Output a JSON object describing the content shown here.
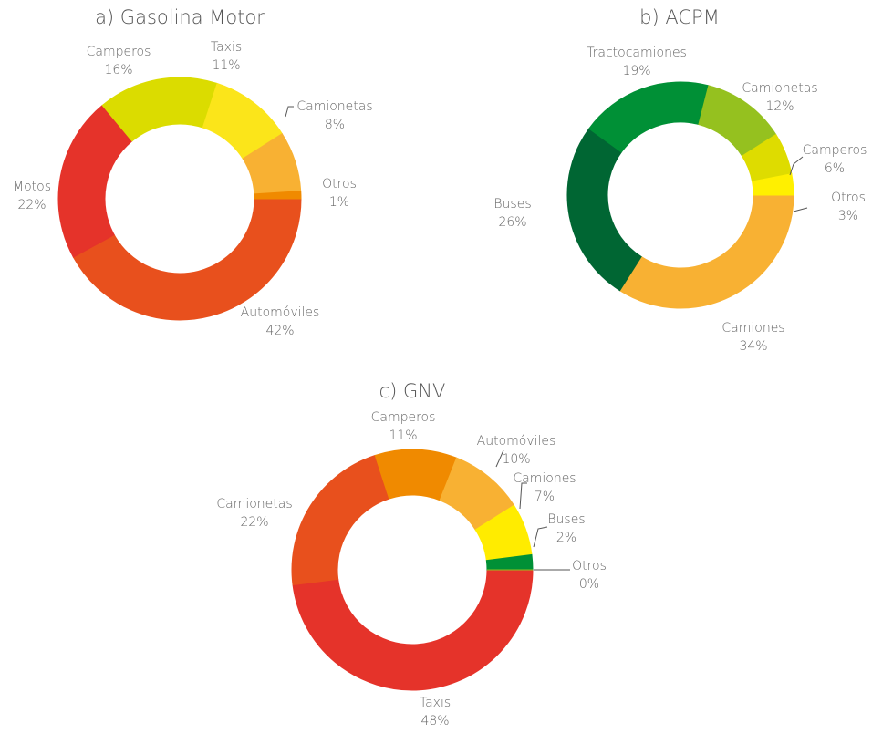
{
  "chart_data": [
    {
      "type": "donut",
      "title": "a) Gasolina Motor",
      "categories": [
        "Automóviles",
        "Motos",
        "Camperos",
        "Taxis",
        "Camionetas",
        "Otros"
      ],
      "values": [
        42,
        22,
        16,
        11,
        8,
        1
      ],
      "value_labels": [
        "42%",
        "22%",
        "16%",
        "11%",
        "8%",
        "1%"
      ],
      "colors": [
        "#e8501d",
        "#e5332a",
        "#dbdc00",
        "#fbe51a",
        "#f8b133",
        "#f08a00"
      ]
    },
    {
      "type": "donut",
      "title": "b) ACPM",
      "categories": [
        "Camiones",
        "Buses",
        "Tractocamiones",
        "Camionetas",
        "Camperos",
        "Otros"
      ],
      "values": [
        34,
        26,
        19,
        12,
        6,
        3
      ],
      "value_labels": [
        "34%",
        "26%",
        "19%",
        "12%",
        "6%",
        "3%"
      ],
      "colors": [
        "#f8b133",
        "#006633",
        "#009036",
        "#95c11f",
        "#dedc00",
        "#fff000"
      ]
    },
    {
      "type": "donut",
      "title": "c) GNV",
      "categories": [
        "Taxis",
        "Camionetas",
        "Camperos",
        "Automóviles",
        "Camiones",
        "Buses",
        "Otros"
      ],
      "values": [
        48,
        22,
        11,
        10,
        7,
        2,
        0
      ],
      "value_labels": [
        "48%",
        "22%",
        "11%",
        "10%",
        "7%",
        "2%",
        "0%"
      ],
      "colors": [
        "#e5332a",
        "#e8501d",
        "#f08a00",
        "#f8b133",
        "#ffec00",
        "#009036",
        "#95c11f"
      ]
    }
  ]
}
